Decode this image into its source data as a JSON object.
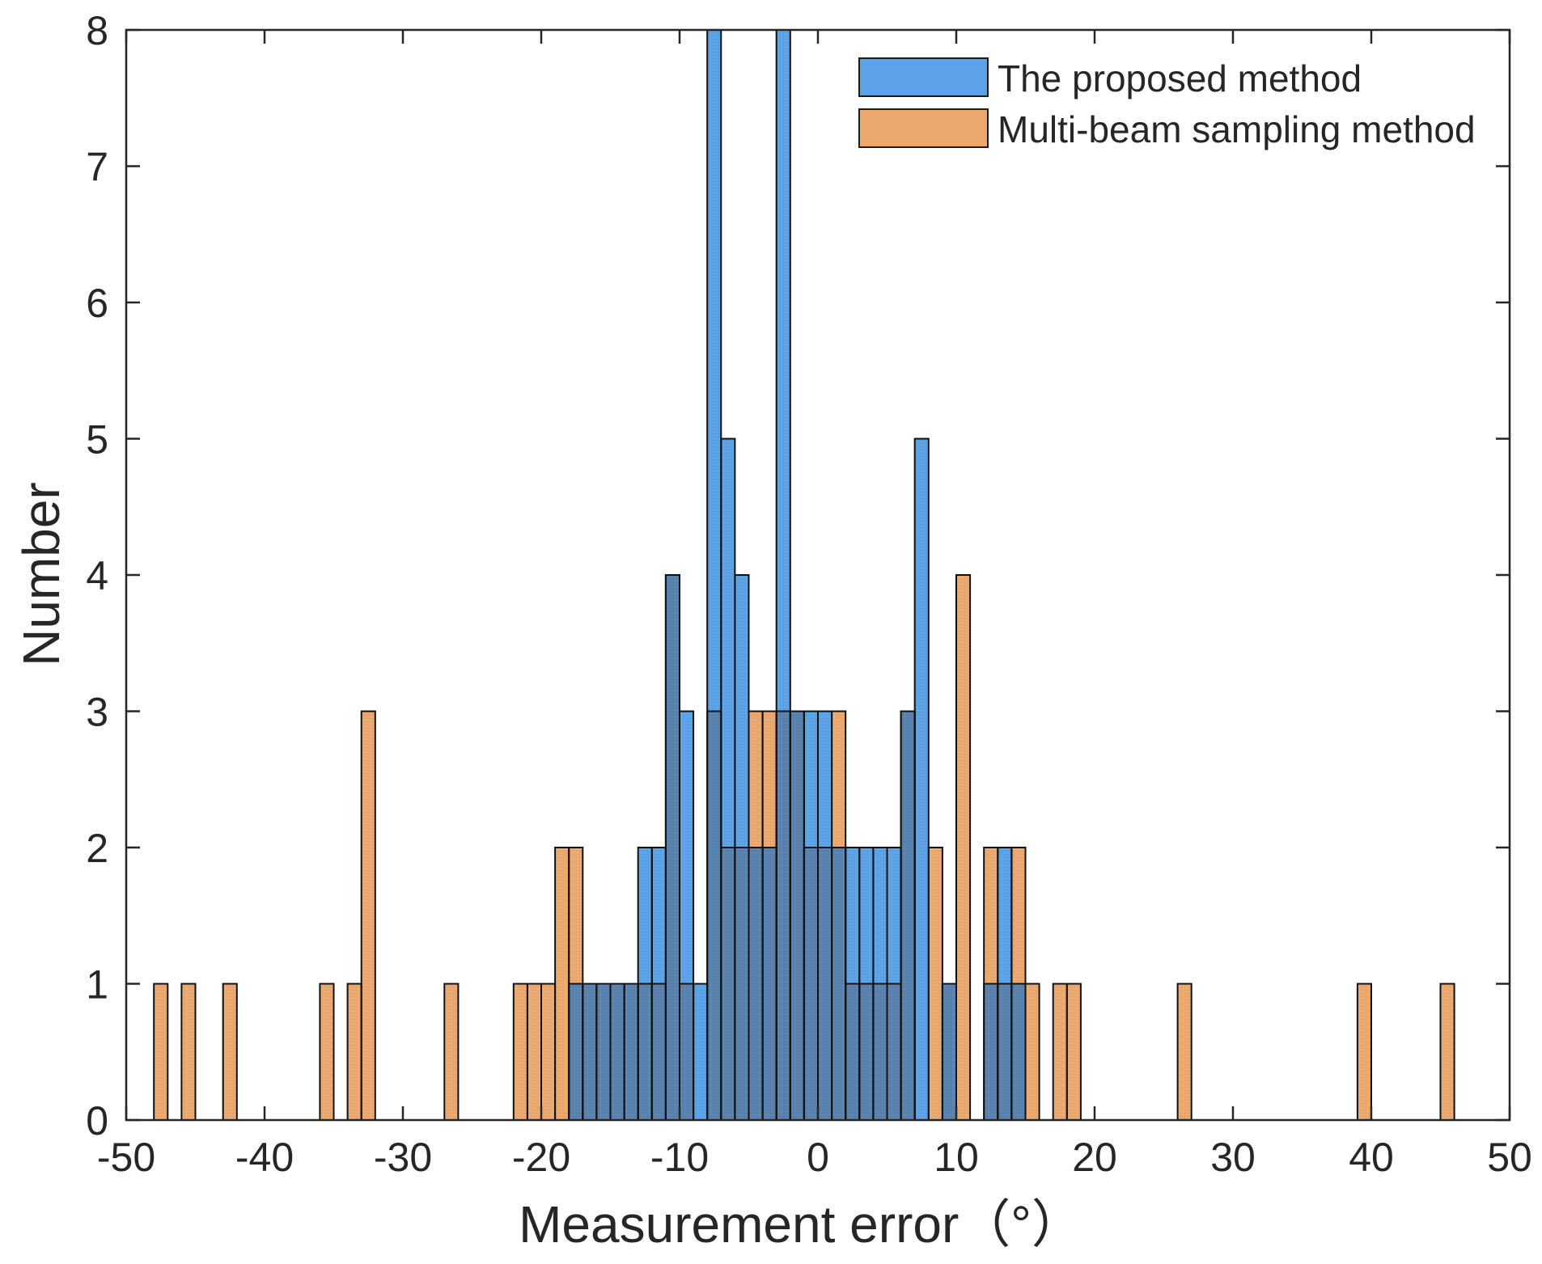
{
  "chart_data": {
    "type": "histogram",
    "title": "",
    "xlabel": "Measurement error（°）",
    "ylabel": "Number",
    "xlim": [
      -50,
      50
    ],
    "ylim": [
      0,
      8
    ],
    "bin_width": 1,
    "xticks": [
      -50,
      -40,
      -30,
      -20,
      -10,
      0,
      10,
      20,
      30,
      40,
      50
    ],
    "yticks": [
      0,
      1,
      2,
      3,
      4,
      5,
      6,
      7,
      8
    ],
    "xtick_labels": [
      "-50",
      "-40",
      "-30",
      "-20",
      "-10",
      "0",
      "10",
      "20",
      "30",
      "40",
      "50"
    ],
    "ytick_labels": [
      "0",
      "1",
      "2",
      "3",
      "4",
      "5",
      "6",
      "7",
      "8"
    ],
    "grid": false,
    "legend_position": "top-right",
    "overlap_color": "#5a82ae",
    "series": [
      {
        "name": "The proposed method",
        "color": "#5ba3e6",
        "bins": [
          {
            "start": -18,
            "count": 1
          },
          {
            "start": -17,
            "count": 1
          },
          {
            "start": -16,
            "count": 1
          },
          {
            "start": -15,
            "count": 1
          },
          {
            "start": -14,
            "count": 1
          },
          {
            "start": -13,
            "count": 2
          },
          {
            "start": -12,
            "count": 2
          },
          {
            "start": -11,
            "count": 4
          },
          {
            "start": -10,
            "count": 3
          },
          {
            "start": -9,
            "count": 1
          },
          {
            "start": -8,
            "count": 8
          },
          {
            "start": -7,
            "count": 5
          },
          {
            "start": -6,
            "count": 4
          },
          {
            "start": -5,
            "count": 2
          },
          {
            "start": -4,
            "count": 2
          },
          {
            "start": -3,
            "count": 8
          },
          {
            "start": -2,
            "count": 3
          },
          {
            "start": -1,
            "count": 3
          },
          {
            "start": 0,
            "count": 3
          },
          {
            "start": 1,
            "count": 2
          },
          {
            "start": 2,
            "count": 2
          },
          {
            "start": 3,
            "count": 2
          },
          {
            "start": 4,
            "count": 2
          },
          {
            "start": 5,
            "count": 2
          },
          {
            "start": 6,
            "count": 3
          },
          {
            "start": 7,
            "count": 5
          },
          {
            "start": 9,
            "count": 1
          },
          {
            "start": 12,
            "count": 1
          },
          {
            "start": 13,
            "count": 2
          },
          {
            "start": 14,
            "count": 1
          }
        ]
      },
      {
        "name": "Multi-beam sampling method",
        "color": "#eba96f",
        "bins": [
          {
            "start": -48,
            "count": 1
          },
          {
            "start": -46,
            "count": 1
          },
          {
            "start": -43,
            "count": 1
          },
          {
            "start": -36,
            "count": 1
          },
          {
            "start": -34,
            "count": 1
          },
          {
            "start": -33,
            "count": 3
          },
          {
            "start": -27,
            "count": 1
          },
          {
            "start": -22,
            "count": 1
          },
          {
            "start": -21,
            "count": 1
          },
          {
            "start": -20,
            "count": 1
          },
          {
            "start": -19,
            "count": 2
          },
          {
            "start": -18,
            "count": 2
          },
          {
            "start": -17,
            "count": 1
          },
          {
            "start": -16,
            "count": 1
          },
          {
            "start": -15,
            "count": 1
          },
          {
            "start": -14,
            "count": 1
          },
          {
            "start": -13,
            "count": 1
          },
          {
            "start": -12,
            "count": 1
          },
          {
            "start": -11,
            "count": 4
          },
          {
            "start": -10,
            "count": 1
          },
          {
            "start": -8,
            "count": 3
          },
          {
            "start": -7,
            "count": 2
          },
          {
            "start": -6,
            "count": 2
          },
          {
            "start": -5,
            "count": 3
          },
          {
            "start": -4,
            "count": 3
          },
          {
            "start": -3,
            "count": 3
          },
          {
            "start": -2,
            "count": 3
          },
          {
            "start": -1,
            "count": 2
          },
          {
            "start": 0,
            "count": 2
          },
          {
            "start": 1,
            "count": 3
          },
          {
            "start": 2,
            "count": 1
          },
          {
            "start": 3,
            "count": 1
          },
          {
            "start": 4,
            "count": 1
          },
          {
            "start": 5,
            "count": 1
          },
          {
            "start": 6,
            "count": 3
          },
          {
            "start": 8,
            "count": 2
          },
          {
            "start": 9,
            "count": 1
          },
          {
            "start": 10,
            "count": 4
          },
          {
            "start": 12,
            "count": 2
          },
          {
            "start": 13,
            "count": 1
          },
          {
            "start": 14,
            "count": 2
          },
          {
            "start": 15,
            "count": 1
          },
          {
            "start": 17,
            "count": 1
          },
          {
            "start": 18,
            "count": 1
          },
          {
            "start": 26,
            "count": 1
          },
          {
            "start": 39,
            "count": 1
          },
          {
            "start": 45,
            "count": 1
          }
        ]
      }
    ]
  }
}
